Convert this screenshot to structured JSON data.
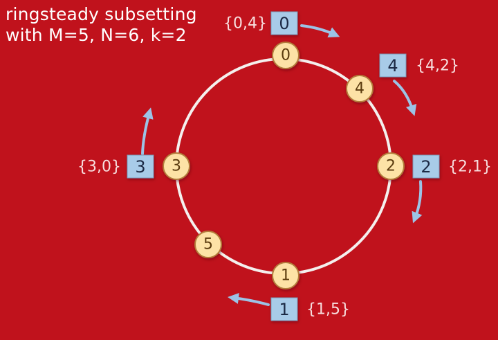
{
  "title": {
    "line1": "ringsteady subsetting",
    "line2": "with M=5, N=6, k=2"
  },
  "colors": {
    "background": "#c0121c",
    "ring": "#f4f0ee",
    "backend_node": "#fde2a6",
    "client_box": "#a8cbe8",
    "arrow": "#9cc3e6"
  },
  "backends": [
    {
      "label": "0"
    },
    {
      "label": "4"
    },
    {
      "label": "2"
    },
    {
      "label": "1"
    },
    {
      "label": "5"
    },
    {
      "label": "3"
    }
  ],
  "clients": [
    {
      "label": "0",
      "subset": "{0,4}"
    },
    {
      "label": "4",
      "subset": "{4,2}"
    },
    {
      "label": "2",
      "subset": "{2,1}"
    },
    {
      "label": "1",
      "subset": "{1,5}"
    },
    {
      "label": "3",
      "subset": "{3,0}"
    }
  ]
}
